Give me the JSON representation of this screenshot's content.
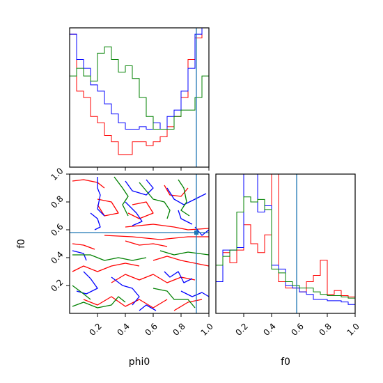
{
  "chart_data": [
    {
      "type": "histogram",
      "panel": "phi0-marginal",
      "x_range": [
        0,
        1
      ],
      "truth_x": 0.91,
      "bins": [
        0,
        0.05,
        0.1,
        0.15,
        0.2,
        0.25,
        0.3,
        0.35,
        0.4,
        0.45,
        0.5,
        0.55,
        0.6,
        0.65,
        0.7,
        0.75,
        0.8,
        0.85,
        0.9,
        0.95,
        1.0
      ],
      "series": [
        {
          "color": "#ff0000",
          "values": [
            1.05,
            0.6,
            0.55,
            0.4,
            0.35,
            0.25,
            0.2,
            0.1,
            0.1,
            0.2,
            0.2,
            0.17,
            0.2,
            0.24,
            0.32,
            0.4,
            0.55,
            0.85,
            1.02,
            1.1
          ]
        },
        {
          "color": "#0000ff",
          "values": [
            1.05,
            0.85,
            0.78,
            0.65,
            0.6,
            0.5,
            0.42,
            0.35,
            0.3,
            0.3,
            0.32,
            0.3,
            0.35,
            0.3,
            0.4,
            0.45,
            0.6,
            0.78,
            1.05,
            1.1
          ]
        },
        {
          "color": "#008000",
          "values": [
            0.72,
            0.78,
            0.72,
            0.68,
            0.9,
            0.95,
            0.85,
            0.75,
            0.8,
            0.7,
            0.55,
            0.4,
            0.3,
            0.3,
            0.3,
            0.4,
            0.45,
            0.45,
            0.55,
            0.72
          ]
        }
      ]
    },
    {
      "type": "contour",
      "panel": "phi0-f0-joint",
      "xlabel": "phi0",
      "ylabel": "f0",
      "x_range": [
        0,
        1
      ],
      "y_range": [
        0,
        1
      ],
      "xticks": [
        "0.2",
        "0.4",
        "0.6",
        "0.8",
        "1.0"
      ],
      "yticks": [
        "0.2",
        "0.4",
        "0.6",
        "0.8",
        "1.0"
      ],
      "truth_x": 0.91,
      "truth_y": 0.58,
      "series": [
        {
          "color": "#ff0000",
          "paths": [
            [
              [
                0.02,
                0.95
              ],
              [
                0.1,
                0.96
              ],
              [
                0.2,
                0.94
              ],
              [
                0.25,
                0.9
              ]
            ],
            [
              [
                0.2,
                0.82
              ],
              [
                0.3,
                0.8
              ],
              [
                0.35,
                0.72
              ],
              [
                0.25,
                0.7
              ],
              [
                0.2,
                0.78
              ]
            ],
            [
              [
                0.45,
                0.78
              ],
              [
                0.55,
                0.8
              ],
              [
                0.6,
                0.72
              ],
              [
                0.5,
                0.68
              ],
              [
                0.42,
                0.72
              ]
            ],
            [
              [
                0.68,
                0.92
              ],
              [
                0.72,
                0.85
              ],
              [
                0.8,
                0.84
              ],
              [
                0.85,
                0.9
              ]
            ],
            [
              [
                0.4,
                0.62
              ],
              [
                0.6,
                0.64
              ],
              [
                0.75,
                0.62
              ],
              [
                0.85,
                0.6
              ],
              [
                1.0,
                0.61
              ]
            ],
            [
              [
                0.25,
                0.56
              ],
              [
                0.45,
                0.55
              ],
              [
                0.65,
                0.53
              ],
              [
                0.85,
                0.55
              ],
              [
                1.0,
                0.55
              ]
            ],
            [
              [
                0.4,
                0.52
              ],
              [
                0.5,
                0.49
              ],
              [
                0.6,
                0.5
              ],
              [
                0.7,
                0.48
              ]
            ],
            [
              [
                0.02,
                0.5
              ],
              [
                0.1,
                0.49
              ],
              [
                0.18,
                0.46
              ]
            ],
            [
              [
                0.02,
                0.3
              ],
              [
                0.1,
                0.34
              ],
              [
                0.2,
                0.3
              ],
              [
                0.3,
                0.34
              ],
              [
                0.4,
                0.36
              ],
              [
                0.5,
                0.34
              ]
            ],
            [
              [
                0.6,
                0.38
              ],
              [
                0.7,
                0.41
              ],
              [
                0.8,
                0.38
              ],
              [
                0.9,
                0.36
              ],
              [
                1.0,
                0.34
              ]
            ],
            [
              [
                0.3,
                0.22
              ],
              [
                0.4,
                0.28
              ],
              [
                0.5,
                0.24
              ],
              [
                0.6,
                0.28
              ],
              [
                0.7,
                0.22
              ],
              [
                0.8,
                0.26
              ],
              [
                0.9,
                0.24
              ]
            ],
            [
              [
                0.1,
                0.1
              ],
              [
                0.2,
                0.06
              ],
              [
                0.3,
                0.12
              ],
              [
                0.4,
                0.05
              ],
              [
                0.5,
                0.1
              ],
              [
                0.6,
                0.04
              ],
              [
                0.7,
                0.1
              ]
            ],
            [
              [
                0.75,
                0.02
              ],
              [
                0.85,
                0.08
              ],
              [
                0.95,
                0.1
              ]
            ]
          ]
        },
        {
          "color": "#0000ff",
          "paths": [
            [
              [
                0.2,
                0.98
              ],
              [
                0.2,
                0.9
              ],
              [
                0.22,
                0.85
              ],
              [
                0.2,
                0.75
              ],
              [
                0.25,
                0.7
              ]
            ],
            [
              [
                0.15,
                0.72
              ],
              [
                0.2,
                0.68
              ],
              [
                0.22,
                0.62
              ],
              [
                0.18,
                0.6
              ]
            ],
            [
              [
                0.4,
                0.95
              ],
              [
                0.45,
                0.88
              ],
              [
                0.55,
                0.85
              ],
              [
                0.6,
                0.9
              ],
              [
                0.55,
                0.96
              ]
            ],
            [
              [
                0.4,
                0.8
              ],
              [
                0.48,
                0.72
              ],
              [
                0.52,
                0.66
              ],
              [
                0.45,
                0.63
              ]
            ],
            [
              [
                0.7,
                0.9
              ],
              [
                0.75,
                0.82
              ],
              [
                0.82,
                0.78
              ],
              [
                0.9,
                0.82
              ],
              [
                0.98,
                0.86
              ]
            ],
            [
              [
                0.78,
                0.74
              ],
              [
                0.8,
                0.68
              ],
              [
                0.88,
                0.64
              ]
            ],
            [
              [
                0.9,
                0.62
              ],
              [
                0.95,
                0.56
              ],
              [
                1.0,
                0.6
              ]
            ],
            [
              [
                0.02,
                0.45
              ],
              [
                0.1,
                0.43
              ],
              [
                0.12,
                0.38
              ]
            ],
            [
              [
                0.1,
                0.3
              ],
              [
                0.15,
                0.25
              ],
              [
                0.2,
                0.18
              ],
              [
                0.12,
                0.14
              ],
              [
                0.05,
                0.16
              ]
            ],
            [
              [
                0.3,
                0.26
              ],
              [
                0.38,
                0.2
              ],
              [
                0.45,
                0.18
              ],
              [
                0.5,
                0.12
              ],
              [
                0.45,
                0.06
              ]
            ],
            [
              [
                0.68,
                0.3
              ],
              [
                0.72,
                0.26
              ],
              [
                0.78,
                0.3
              ],
              [
                0.82,
                0.22
              ],
              [
                0.88,
                0.25
              ]
            ],
            [
              [
                0.8,
                0.16
              ],
              [
                0.88,
                0.12
              ],
              [
                0.95,
                0.15
              ],
              [
                1.0,
                0.12
              ]
            ],
            [
              [
                0.5,
                0.02
              ],
              [
                0.55,
                0.06
              ],
              [
                0.62,
                0.02
              ]
            ]
          ]
        },
        {
          "color": "#008000",
          "paths": [
            [
              [
                0.32,
                0.98
              ],
              [
                0.38,
                0.9
              ],
              [
                0.42,
                0.84
              ],
              [
                0.38,
                0.78
              ],
              [
                0.42,
                0.7
              ]
            ],
            [
              [
                0.5,
                0.94
              ],
              [
                0.55,
                0.88
              ],
              [
                0.6,
                0.82
              ],
              [
                0.68,
                0.8
              ],
              [
                0.72,
                0.74
              ],
              [
                0.7,
                0.68
              ]
            ],
            [
              [
                0.78,
                0.96
              ],
              [
                0.82,
                0.9
              ],
              [
                0.84,
                0.8
              ],
              [
                0.8,
                0.74
              ],
              [
                0.86,
                0.7
              ]
            ],
            [
              [
                0.02,
                0.42
              ],
              [
                0.15,
                0.42
              ],
              [
                0.25,
                0.38
              ],
              [
                0.35,
                0.4
              ],
              [
                0.45,
                0.38
              ],
              [
                0.55,
                0.4
              ]
            ],
            [
              [
                0.65,
                0.45
              ],
              [
                0.75,
                0.42
              ],
              [
                0.85,
                0.44
              ],
              [
                1.0,
                0.42
              ]
            ],
            [
              [
                0.02,
                0.2
              ],
              [
                0.1,
                0.14
              ],
              [
                0.15,
                0.1
              ]
            ],
            [
              [
                0.02,
                0.05
              ],
              [
                0.1,
                0.08
              ],
              [
                0.2,
                0.04
              ],
              [
                0.3,
                0.06
              ],
              [
                0.35,
                0.12
              ],
              [
                0.4,
                0.08
              ]
            ],
            [
              [
                0.6,
                0.18
              ],
              [
                0.7,
                0.16
              ],
              [
                0.75,
                0.1
              ],
              [
                0.85,
                0.1
              ],
              [
                0.9,
                0.04
              ]
            ]
          ]
        }
      ]
    },
    {
      "type": "histogram",
      "panel": "f0-marginal",
      "xlabel": "f0",
      "x_range": [
        0,
        1
      ],
      "xticks": [
        "0.2",
        "0.4",
        "0.6",
        "0.8",
        "1.0"
      ],
      "truth_x": 0.58,
      "bins": [
        0,
        0.05,
        0.1,
        0.15,
        0.2,
        0.25,
        0.3,
        0.35,
        0.4,
        0.45,
        0.5,
        0.55,
        0.6,
        0.65,
        0.7,
        0.75,
        0.8,
        0.85,
        0.9,
        0.95,
        1.0
      ],
      "series": [
        {
          "color": "#ff0000",
          "values": [
            0.25,
            0.48,
            0.4,
            0.5,
            0.7,
            0.55,
            0.48,
            0.62,
            1.1,
            0.25,
            0.2,
            0.2,
            0.17,
            0.25,
            0.3,
            0.42,
            0.15,
            0.18,
            0.14,
            0.13
          ]
        },
        {
          "color": "#0000ff",
          "values": [
            0.25,
            0.5,
            0.5,
            0.52,
            1.1,
            1.1,
            0.8,
            0.85,
            0.38,
            0.35,
            0.22,
            0.2,
            0.17,
            0.15,
            0.11,
            0.11,
            0.1,
            0.1,
            0.09,
            0.07
          ]
        },
        {
          "color": "#008000",
          "values": [
            0.38,
            0.45,
            0.5,
            0.8,
            0.92,
            0.88,
            0.9,
            0.82,
            0.35,
            0.32,
            0.25,
            0.22,
            0.2,
            0.2,
            0.17,
            0.15,
            0.14,
            0.14,
            0.13,
            0.12
          ]
        }
      ]
    }
  ]
}
